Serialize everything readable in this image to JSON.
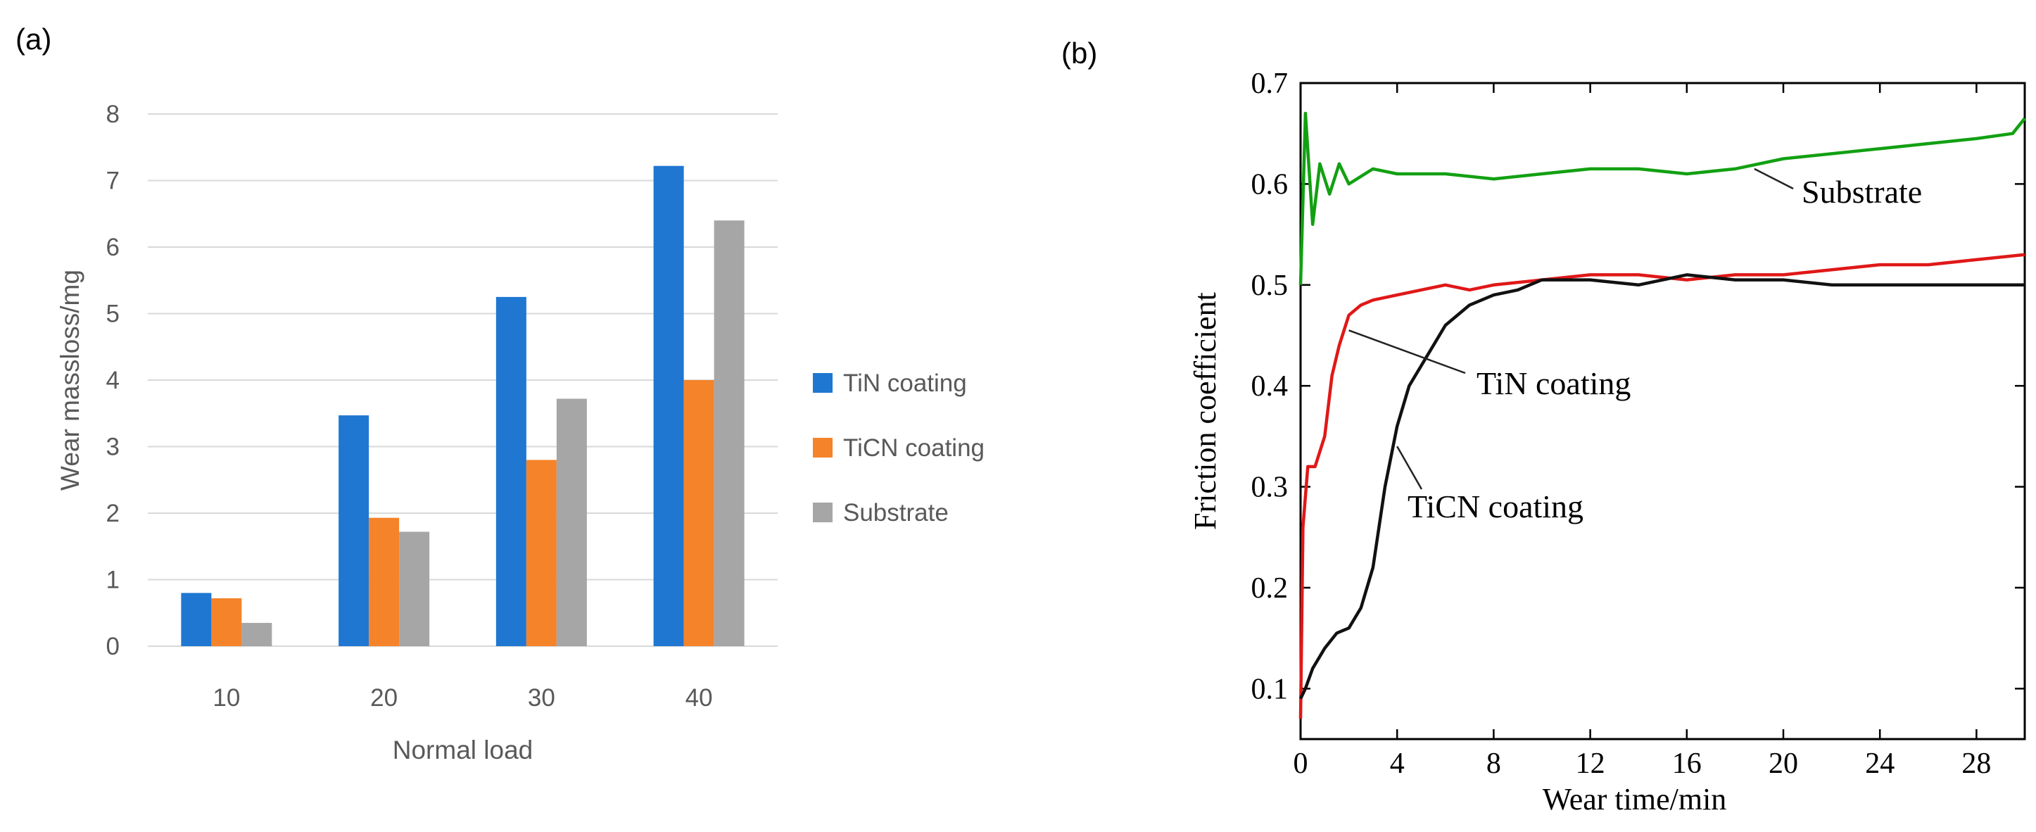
{
  "panel_labels": {
    "a": "(a)",
    "b": "(b)"
  },
  "chart_data": [
    {
      "type": "bar",
      "xlabel": "Normal load",
      "ylabel": "Wear massloss/mg",
      "categories": [
        "10",
        "20",
        "30",
        "40"
      ],
      "ylim": [
        0,
        8
      ],
      "yticks": [
        "0",
        "1",
        "2",
        "3",
        "4",
        "5",
        "6",
        "7",
        "8"
      ],
      "grid": true,
      "legend": "right",
      "series": [
        {
          "name": "TiN coating",
          "color": "#1f77d2",
          "values": [
            0.8,
            3.47,
            5.25,
            7.22
          ]
        },
        {
          "name": "TiCN coating",
          "color": "#f5832a",
          "values": [
            0.72,
            1.93,
            2.8,
            4.0
          ]
        },
        {
          "name": "Substrate",
          "color": "#a6a6a6",
          "values": [
            0.35,
            1.72,
            3.72,
            6.4
          ]
        }
      ]
    },
    {
      "type": "line",
      "xlabel": "Wear time/min",
      "ylabel": "Friction coefficient",
      "xlim": [
        0,
        30
      ],
      "ylim": [
        0.05,
        0.7
      ],
      "xticks": [
        "0",
        "4",
        "8",
        "12",
        "16",
        "20",
        "24",
        "28"
      ],
      "yticks": [
        "0.1",
        "0.2",
        "0.3",
        "0.4",
        "0.5",
        "0.6",
        "0.7"
      ],
      "series": [
        {
          "name": "Substrate",
          "color": "#12a012",
          "x": [
            0,
            0.2,
            0.5,
            0.8,
            1.2,
            1.6,
            2.0,
            3.0,
            4.0,
            6.0,
            8.0,
            10.0,
            12.0,
            14.0,
            16.0,
            18.0,
            20.0,
            22.0,
            24.0,
            26.0,
            28.0,
            29.5,
            30.0
          ],
          "y": [
            0.5,
            0.67,
            0.56,
            0.62,
            0.59,
            0.62,
            0.6,
            0.615,
            0.61,
            0.61,
            0.605,
            0.61,
            0.615,
            0.615,
            0.61,
            0.615,
            0.625,
            0.63,
            0.635,
            0.64,
            0.645,
            0.65,
            0.665
          ]
        },
        {
          "name": "TiN coating",
          "color": "#e01818",
          "x": [
            0,
            0.1,
            0.3,
            0.6,
            1.0,
            1.3,
            1.6,
            2.0,
            2.5,
            3.0,
            4.0,
            5.0,
            6.0,
            7.0,
            8.0,
            10.0,
            12.0,
            14.0,
            16.0,
            18.0,
            20.0,
            22.0,
            24.0,
            26.0,
            28.0,
            30.0
          ],
          "y": [
            0.07,
            0.26,
            0.32,
            0.32,
            0.35,
            0.41,
            0.44,
            0.47,
            0.48,
            0.485,
            0.49,
            0.495,
            0.5,
            0.495,
            0.5,
            0.505,
            0.51,
            0.51,
            0.505,
            0.51,
            0.51,
            0.515,
            0.52,
            0.52,
            0.525,
            0.53
          ]
        },
        {
          "name": "TiCN coating",
          "color": "#111111",
          "x": [
            0,
            0.2,
            0.5,
            1.0,
            1.5,
            2.0,
            2.5,
            3.0,
            3.5,
            4.0,
            4.5,
            5.0,
            6.0,
            7.0,
            8.0,
            9.0,
            10.0,
            12.0,
            14.0,
            16.0,
            18.0,
            20.0,
            22.0,
            24.0,
            26.0,
            28.0,
            30.0
          ],
          "y": [
            0.09,
            0.1,
            0.12,
            0.14,
            0.155,
            0.16,
            0.18,
            0.22,
            0.3,
            0.36,
            0.4,
            0.42,
            0.46,
            0.48,
            0.49,
            0.495,
            0.505,
            0.505,
            0.5,
            0.51,
            0.505,
            0.505,
            0.5,
            0.5,
            0.5,
            0.5,
            0.5
          ]
        }
      ],
      "annotations": [
        "Substrate",
        "TiN coating",
        "TiCN coating"
      ]
    }
  ]
}
